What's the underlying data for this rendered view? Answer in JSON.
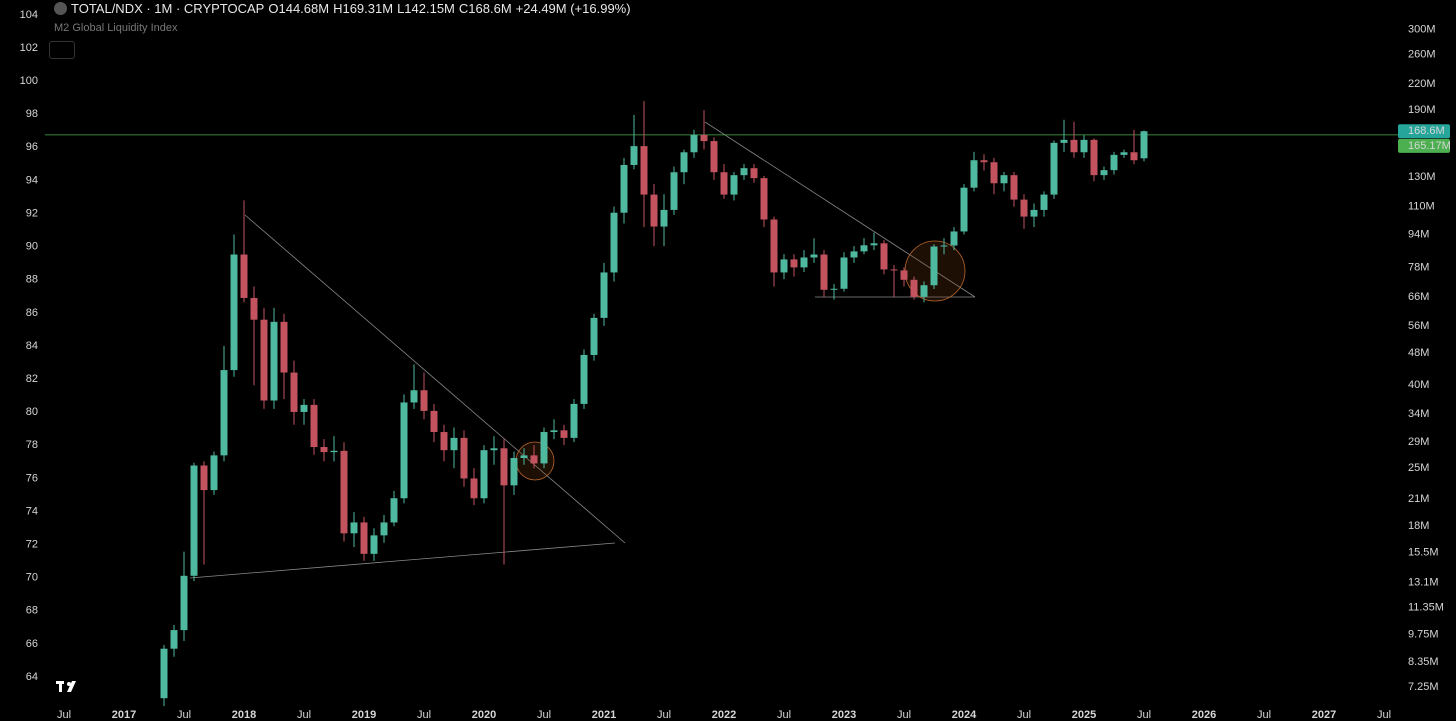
{
  "chart_data": {
    "type": "candlestick",
    "title": "TOTAL/NDX · 1M · CRYPTOCAP",
    "header_values": [
      "O",
      "144.68M",
      "H",
      "169.31M",
      "L",
      "142.15M",
      "C",
      "168.6M",
      "+24.49M (+16.99%)"
    ],
    "indicator": "M2 Global Liquidity Index",
    "up_color": "#4fb9a0",
    "down_color": "#c2535f",
    "log_scale": true,
    "x": [
      "2017-05",
      "2017-06",
      "2017-07",
      "2017-08",
      "2017-09",
      "2017-10",
      "2017-11",
      "2017-12",
      "2018-01",
      "2018-02",
      "2018-03",
      "2018-04",
      "2018-05",
      "2018-06",
      "2018-07",
      "2018-08",
      "2018-09",
      "2018-10",
      "2018-11",
      "2018-12",
      "2019-01",
      "2019-02",
      "2019-03",
      "2019-04",
      "2019-05",
      "2019-06",
      "2019-07",
      "2019-08",
      "2019-09",
      "2019-10",
      "2019-11",
      "2019-12",
      "2020-01",
      "2020-02",
      "2020-03",
      "2020-04",
      "2020-05",
      "2020-06",
      "2020-07",
      "2020-08",
      "2020-09",
      "2020-10",
      "2020-11",
      "2020-12",
      "2021-01",
      "2021-02",
      "2021-03",
      "2021-04",
      "2021-05",
      "2021-06",
      "2021-07",
      "2021-08",
      "2021-09",
      "2021-10",
      "2021-11",
      "2021-12",
      "2022-01",
      "2022-02",
      "2022-03",
      "2022-04",
      "2022-05",
      "2022-06",
      "2022-07",
      "2022-08",
      "2022-09",
      "2022-10",
      "2022-11",
      "2022-12",
      "2023-01",
      "2023-02",
      "2023-03",
      "2023-04",
      "2023-05",
      "2023-06",
      "2023-07",
      "2023-08",
      "2023-09",
      "2023-10",
      "2023-11",
      "2023-12",
      "2024-01",
      "2024-02",
      "2024-03",
      "2024-04",
      "2024-05",
      "2024-06",
      "2024-07",
      "2024-08",
      "2024-09",
      "2024-10",
      "2024-11",
      "2024-12",
      "2025-01",
      "2025-02",
      "2025-03",
      "2025-04",
      "2025-05",
      "2025-06",
      "2025-07"
    ],
    "open": [
      6.8,
      9.0,
      10.0,
      13.6,
      25.4,
      22.1,
      26.9,
      43.6,
      83.9,
      65.6,
      58.0,
      36.7,
      57.3,
      43.0,
      34.4,
      35.8,
      28.2,
      27.4,
      27.6,
      17.3,
      18.4,
      15.4,
      17.1,
      18.4,
      21.1,
      36.3,
      38.9,
      34.6,
      30.7,
      27.7,
      29.7,
      23.6,
      21.1,
      27.7,
      28.0,
      22.7,
      26.5,
      26.9,
      25.7,
      30.7,
      31.0,
      29.7,
      36.0,
      47.5,
      58.6,
      75.8,
      106.3,
      139.3,
      155,
      117.8,
      98.3,
      108,
      133.7,
      149.7,
      165.2,
      159.5,
      133.7,
      117.8,
      131.5,
      136.8,
      129.3,
      102.3,
      75.8,
      81.6,
      78.0,
      82.5,
      83.9,
      68.7,
      69.1,
      82.5,
      85.4,
      88.4,
      89.4,
      77.1,
      76.7,
      72.7,
      66.0,
      70.5,
      87.8,
      88.3,
      95.6,
      122.5,
      143.1,
      141.5,
      125.6,
      131.5,
      114.5,
      104,
      108,
      117.8,
      157.9,
      160.6,
      149.7,
      160.6,
      131.5,
      135.3,
      147.5,
      149.7,
      144.68
    ],
    "high": [
      9.2,
      10.3,
      15.6,
      25.8,
      26,
      27.5,
      50,
      94,
      114,
      70,
      62,
      62,
      60,
      46,
      37,
      37,
      29.5,
      30,
      29,
      19.5,
      19,
      17.8,
      19.2,
      22,
      38,
      45,
      43,
      36,
      32,
      31.5,
      31,
      25,
      28.5,
      30,
      29.5,
      27.5,
      28,
      28.5,
      31.5,
      33,
      32,
      37,
      49,
      60,
      80,
      110,
      145,
      185,
      200,
      125,
      118,
      138,
      152,
      170,
      190,
      163,
      140,
      134,
      140,
      140,
      131,
      104,
      84,
      84,
      86,
      92,
      86,
      71,
      85,
      88,
      92,
      95,
      91,
      79,
      78,
      74,
      72,
      89,
      92,
      98,
      125,
      150,
      148,
      145,
      134,
      134,
      118,
      112,
      120,
      160,
      180,
      178,
      165,
      162,
      138,
      150,
      152,
      170,
      169.31
    ],
    "low": [
      6.5,
      8.6,
      9.4,
      13.2,
      14.5,
      21.5,
      26,
      42,
      64,
      40,
      35,
      35,
      37,
      32,
      32,
      27,
      26,
      26,
      16.5,
      16,
      14.8,
      14.8,
      16.4,
      18,
      20.5,
      35,
      33,
      29,
      26,
      25,
      22.5,
      20.3,
      20.5,
      25.5,
      14.5,
      21.5,
      25.5,
      25,
      25,
      29.5,
      28.5,
      29,
      35,
      46,
      56,
      72,
      100,
      136,
      98,
      88,
      88,
      105,
      125,
      145,
      152,
      128,
      115,
      114,
      128,
      126,
      98,
      70,
      73,
      74,
      76,
      80,
      66,
      65,
      68,
      80,
      84,
      86,
      75,
      66,
      70,
      65,
      64,
      69,
      84,
      86,
      94,
      120,
      135,
      118,
      120,
      110,
      97,
      98,
      104,
      115,
      150,
      145,
      145,
      127,
      128,
      132,
      145,
      140,
      142.15
    ],
    "close": [
      9.0,
      10.0,
      13.6,
      25.4,
      22.1,
      26.9,
      43.6,
      83.9,
      65.6,
      58.0,
      36.7,
      57.3,
      43.0,
      34.4,
      35.8,
      28.2,
      27.4,
      27.6,
      17.3,
      18.4,
      15.4,
      17.1,
      18.4,
      21.1,
      36.3,
      38.9,
      34.6,
      30.7,
      27.7,
      29.7,
      23.6,
      21.1,
      27.7,
      28.0,
      22.7,
      26.5,
      26.9,
      25.7,
      30.7,
      31.0,
      29.7,
      36.0,
      47.5,
      58.6,
      75.8,
      106.3,
      139.3,
      155,
      117.8,
      98.3,
      108,
      133.7,
      149.7,
      165.2,
      159.5,
      133.7,
      117.8,
      131.5,
      136.8,
      129.3,
      102.3,
      75.8,
      81.6,
      78.0,
      82.5,
      83.9,
      68.7,
      69.1,
      82.5,
      85.4,
      88.4,
      89.4,
      77.1,
      76.7,
      72.7,
      66.0,
      70.5,
      87.8,
      88.3,
      95.6,
      122.5,
      143.1,
      141.5,
      125.6,
      131.5,
      114.5,
      104,
      108,
      117.8,
      157.9,
      160.6,
      149.7,
      160.6,
      131.5,
      135.3,
      147.5,
      149.7,
      143.1,
      168.6
    ],
    "last_price": {
      "value": 168.6,
      "label": "168.6M",
      "color": "#26a69a"
    },
    "hline": {
      "value": 165.17,
      "label": "165.17M",
      "color": "#4caf50"
    },
    "xlim": [
      "2016-01",
      "2027-09"
    ],
    "xticks": [
      {
        "value": "2016-07",
        "label": "Jul"
      },
      {
        "value": "2017-01",
        "label": "2017"
      },
      {
        "value": "2017-07",
        "label": "Jul"
      },
      {
        "value": "2018-01",
        "label": "2018"
      },
      {
        "value": "2018-07",
        "label": "Jul"
      },
      {
        "value": "2019-01",
        "label": "2019"
      },
      {
        "value": "2019-07",
        "label": "Jul"
      },
      {
        "value": "2020-01",
        "label": "2020"
      },
      {
        "value": "2020-07",
        "label": "Jul"
      },
      {
        "value": "2021-01",
        "label": "2021"
      },
      {
        "value": "2021-07",
        "label": "Jul"
      },
      {
        "value": "2022-01",
        "label": "2022"
      },
      {
        "value": "2022-07",
        "label": "Jul"
      },
      {
        "value": "2023-01",
        "label": "2023"
      },
      {
        "value": "2023-07",
        "label": "Jul"
      },
      {
        "value": "2024-01",
        "label": "2024"
      },
      {
        "value": "2024-07",
        "label": "Jul"
      },
      {
        "value": "2025-01",
        "label": "2025"
      },
      {
        "value": "2025-07",
        "label": "Jul"
      },
      {
        "value": "2026-01",
        "label": "2026"
      },
      {
        "value": "2026-07",
        "label": "Jul"
      },
      {
        "value": "2027-01",
        "label": "2027"
      },
      {
        "value": "2027-07",
        "label": "Jul"
      }
    ],
    "ylim": [
      6.58,
      354.6
    ],
    "yticks": [
      {
        "value": 7.25,
        "label": "7.25M"
      },
      {
        "value": 8.35,
        "label": "8.35M"
      },
      {
        "value": 9.75,
        "label": "9.75M"
      },
      {
        "value": 11.35,
        "label": "11.35M"
      },
      {
        "value": 13.1,
        "label": "13.1M"
      },
      {
        "value": 15.5,
        "label": "15.5M"
      },
      {
        "value": 18,
        "label": "18M"
      },
      {
        "value": 21,
        "label": "21M"
      },
      {
        "value": 25,
        "label": "25M"
      },
      {
        "value": 29,
        "label": "29M"
      },
      {
        "value": 34,
        "label": "34M"
      },
      {
        "value": 40,
        "label": "40M"
      },
      {
        "value": 48,
        "label": "48M"
      },
      {
        "value": 56,
        "label": "56M"
      },
      {
        "value": 66,
        "label": "66M"
      },
      {
        "value": 78,
        "label": "78M"
      },
      {
        "value": 94,
        "label": "94M"
      },
      {
        "value": 110,
        "label": "110M"
      },
      {
        "value": 130,
        "label": "130M"
      },
      {
        "value": 190,
        "label": "190M"
      },
      {
        "value": 220,
        "label": "220M"
      },
      {
        "value": 260,
        "label": "260M"
      },
      {
        "value": 300,
        "label": "300M"
      }
    ],
    "y2lim": [
      62.37,
      104.9
    ],
    "y2ticks": [
      64,
      66,
      68,
      70,
      72,
      74,
      76,
      78,
      80,
      82,
      84,
      86,
      88,
      90,
      92,
      94,
      96,
      98,
      100,
      102,
      104
    ]
  }
}
